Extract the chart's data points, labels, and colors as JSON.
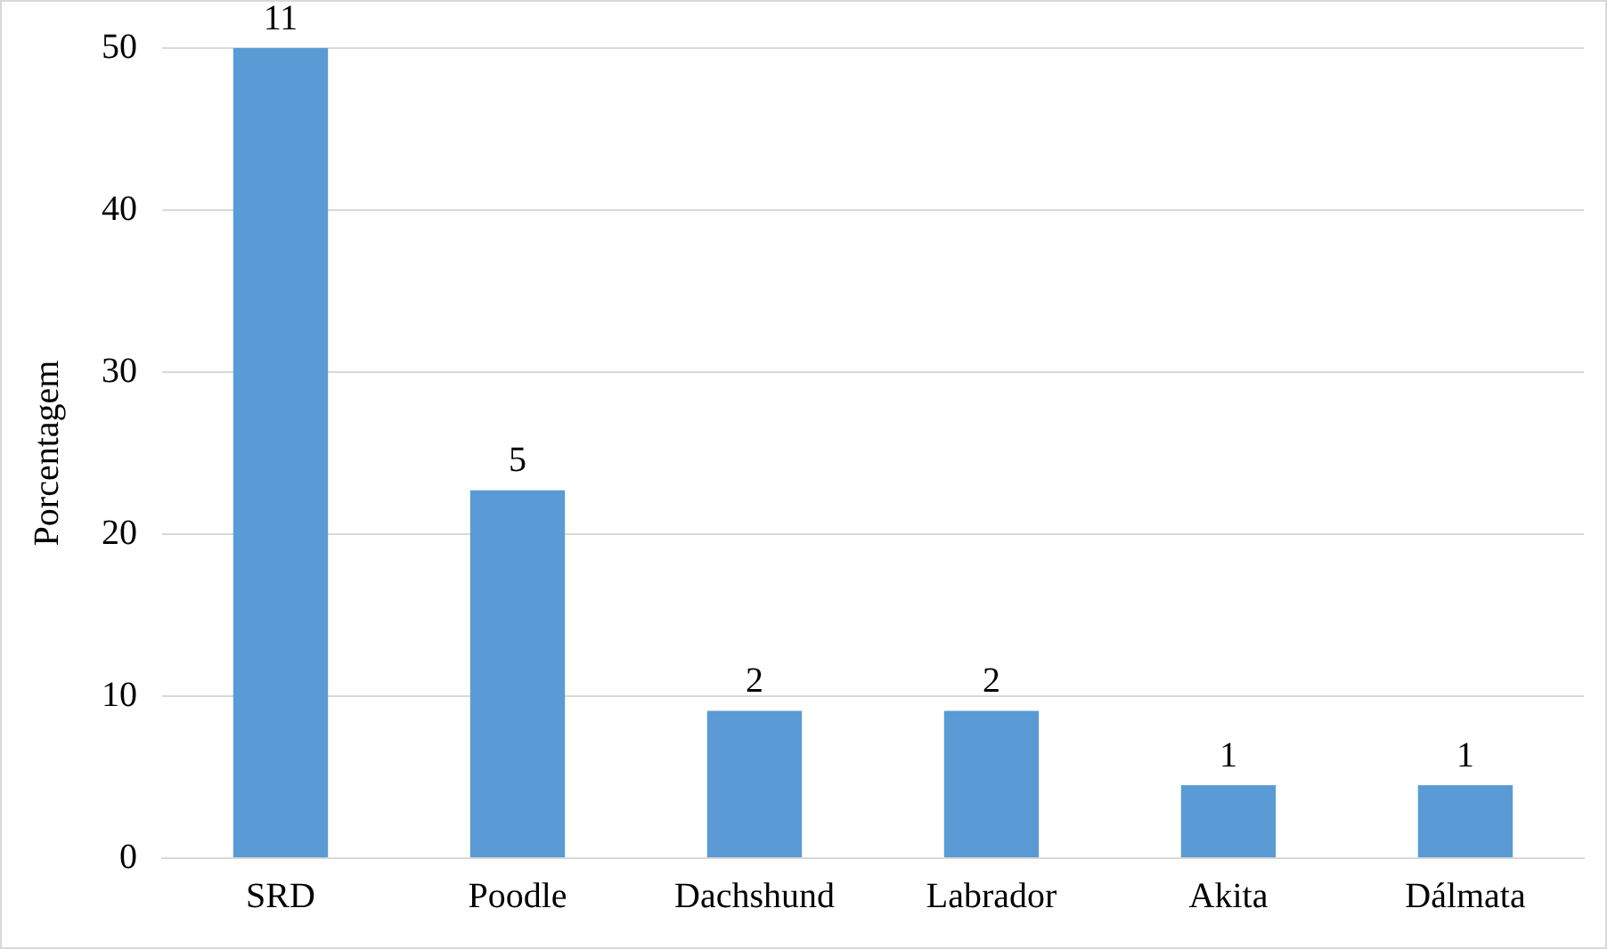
{
  "chart_data": {
    "type": "bar",
    "ylabel": "Porcentagem",
    "categories": [
      "SRD",
      "Poodle",
      "Dachshund",
      "Labrador",
      "Akita",
      "Dálmata"
    ],
    "values": [
      50,
      22.7,
      9.1,
      9.1,
      4.5,
      4.5
    ],
    "annotations": [
      {
        "text": "11",
        "x": "SRD",
        "y": 50
      },
      {
        "text": "5",
        "x": "Poodle",
        "y": 22.7
      },
      {
        "text": "2",
        "x": "Dachshund",
        "y": 9.1
      },
      {
        "text": "2",
        "x": "Labrador",
        "y": 9.1
      },
      {
        "text": "1",
        "x": "Akita",
        "y": 4.5
      },
      {
        "text": "1",
        "x": "Dálmata",
        "y": 4.5
      }
    ],
    "color": "#5b9bd5",
    "ylim": [
      0,
      50
    ],
    "yticks": [
      0,
      10,
      20,
      30,
      40,
      50
    ],
    "grid": "y",
    "legend": false
  }
}
